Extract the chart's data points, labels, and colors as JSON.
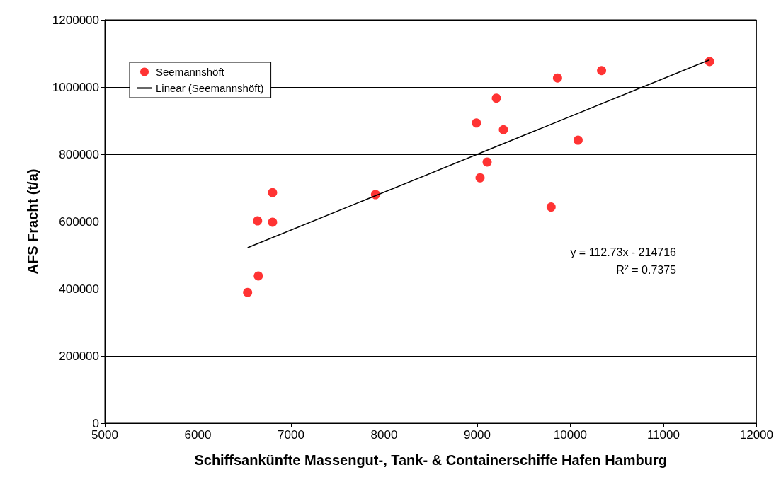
{
  "chart_data": {
    "type": "scatter",
    "xlabel": "Schiffsankünfte Massengut-, Tank- & Containerschiffe Hafen Hamburg",
    "ylabel": "AFS Fracht (t/a)",
    "xlim": [
      5000,
      12000
    ],
    "xticks": [
      5000,
      6000,
      7000,
      8000,
      9000,
      10000,
      11000,
      12000
    ],
    "ylim": [
      0,
      1200000
    ],
    "yticks": [
      0,
      200000,
      400000,
      600000,
      800000,
      1000000,
      1200000
    ],
    "grid": "y",
    "legend": "top left",
    "series": [
      {
        "name": "Seemannshöft",
        "marker": "circle",
        "color": "#ff0000",
        "x": [
          6534,
          6649,
          6641,
          6802,
          6802,
          7908,
          8992,
          9031,
          9107,
          9206,
          9282,
          9794,
          9863,
          10084,
          10336,
          11496
        ],
        "values": [
          389000,
          438000,
          602000,
          598000,
          686000,
          680000,
          893000,
          730000,
          777000,
          967000,
          873000,
          643000,
          1027000,
          842000,
          1049000,
          1076000
        ]
      },
      {
        "name": "Linear (Seemannshöft)",
        "type": "line",
        "color": "#000000",
        "x": [
          6534,
          11496
        ],
        "values": [
          522000,
          1081000
        ]
      }
    ],
    "annotations": [
      "y = 112.73x - 214716",
      "R$^{2}$ = 0.7375"
    ]
  }
}
